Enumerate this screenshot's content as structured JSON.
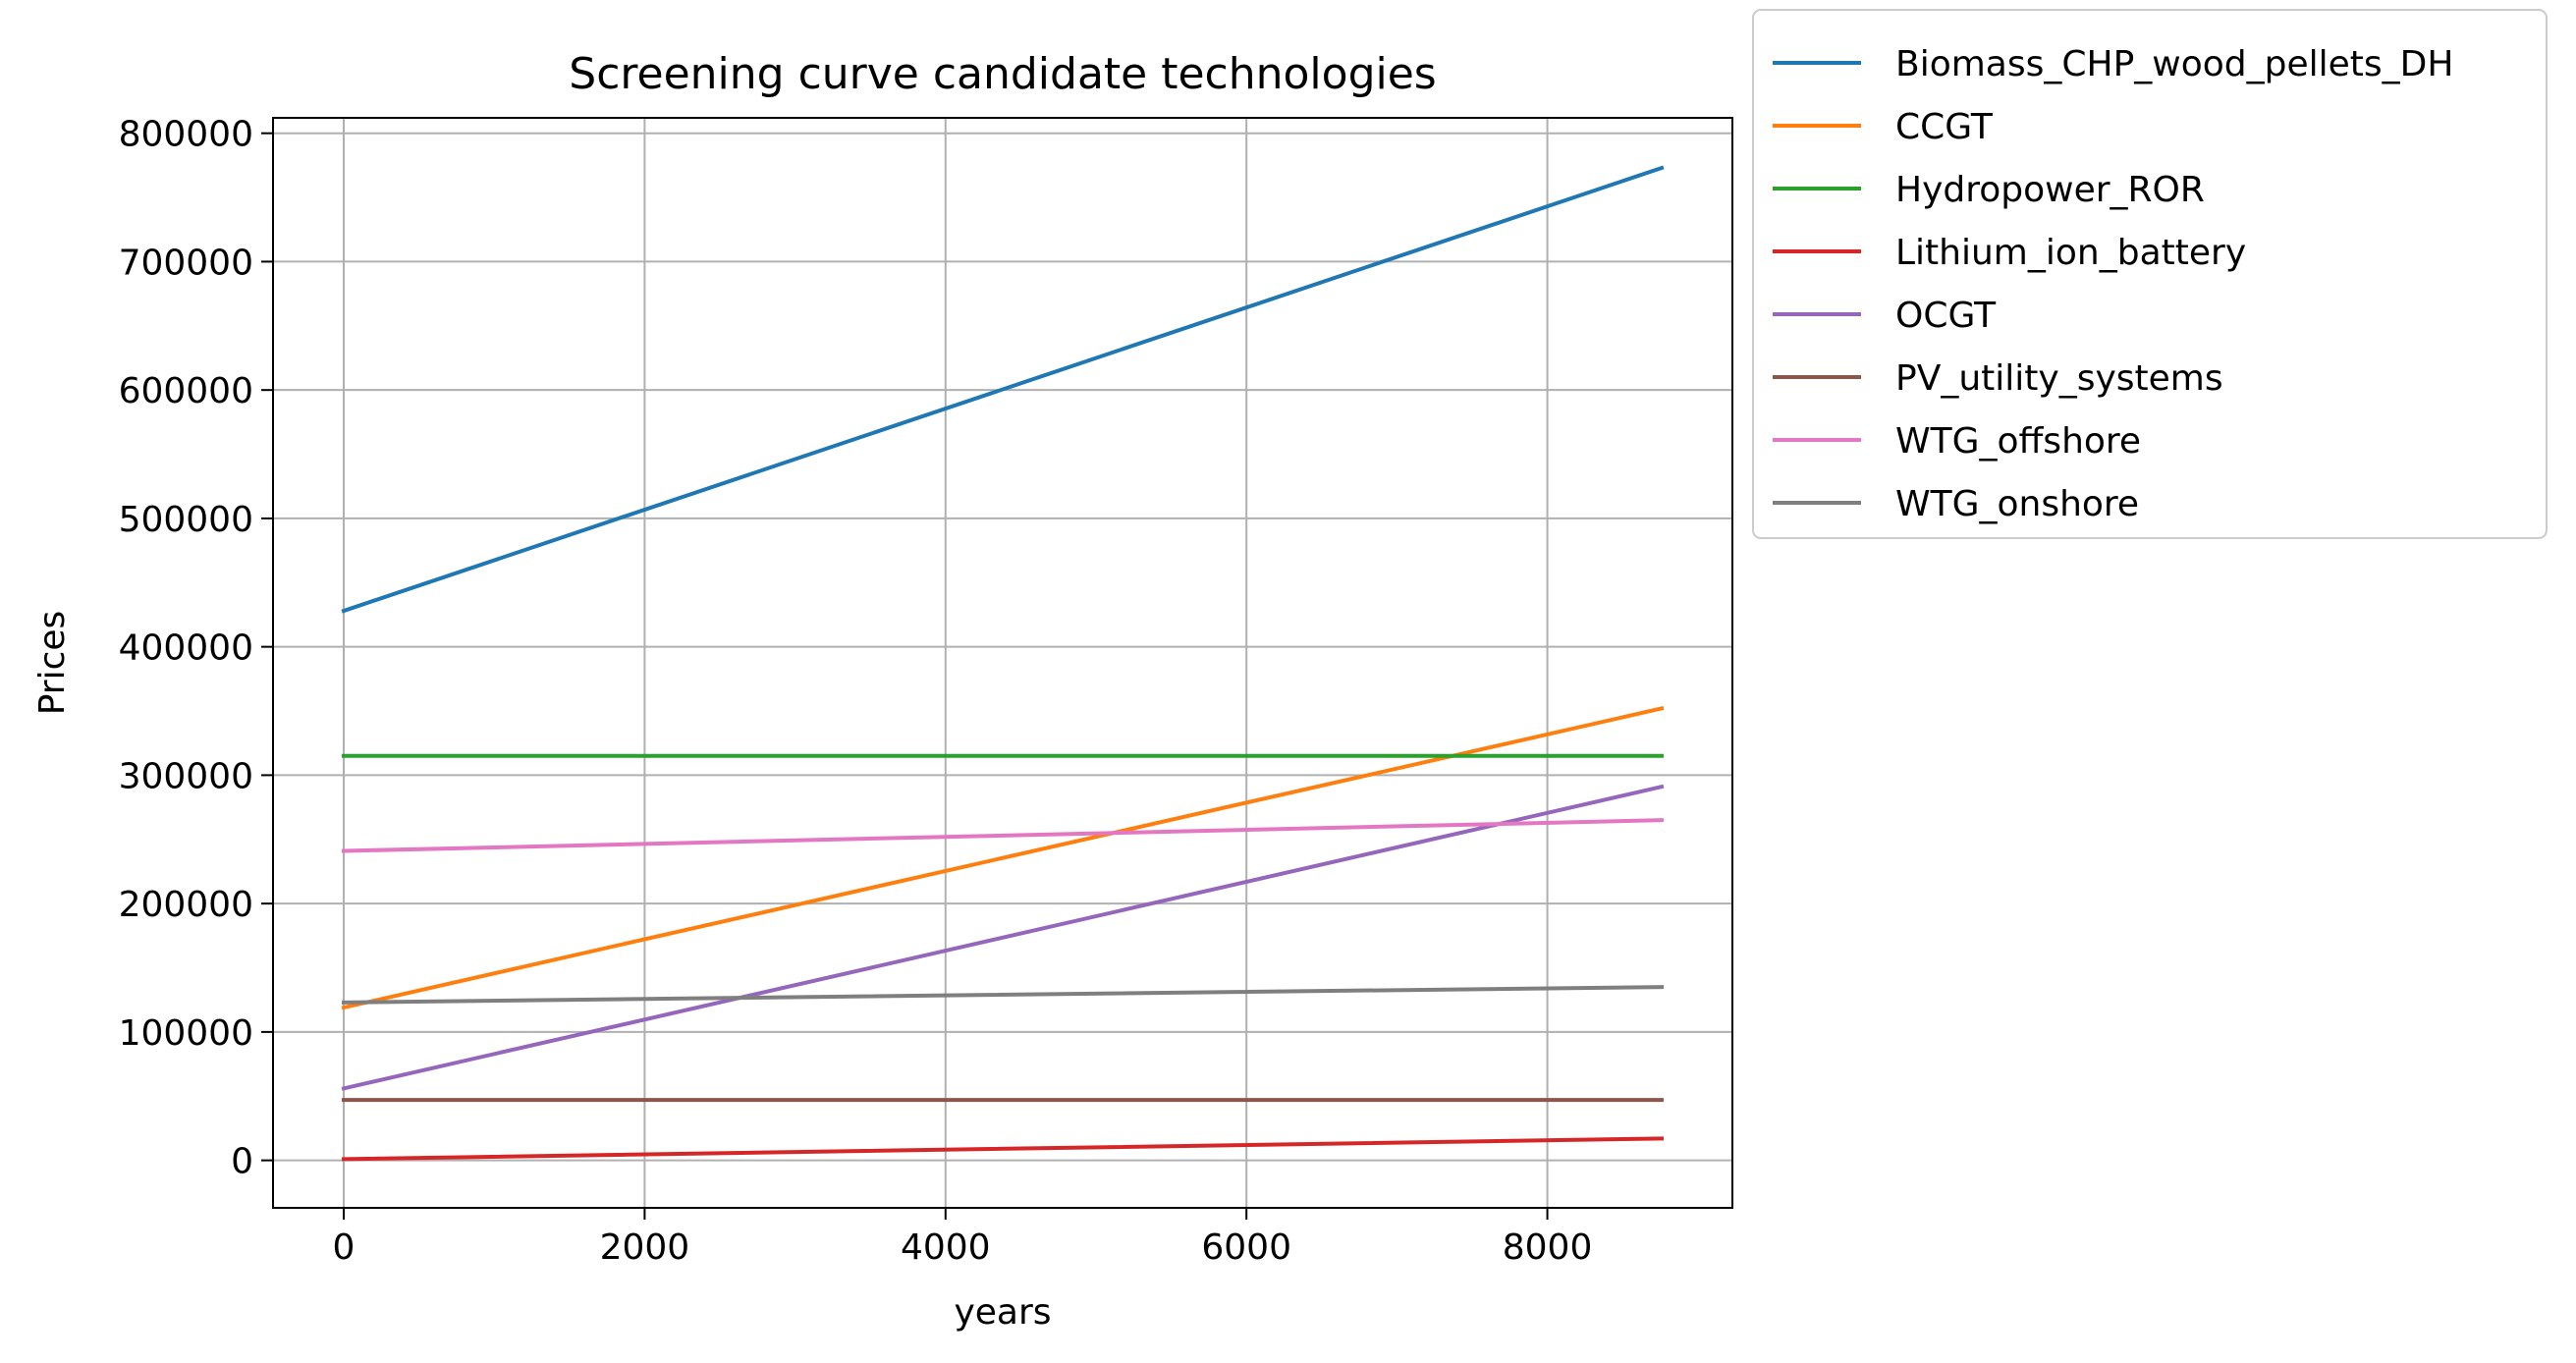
{
  "chart_data": {
    "type": "line",
    "title": "Screening curve candidate technologies",
    "xlabel": "years",
    "ylabel": "Prices",
    "xlim": [
      -470,
      9230
    ],
    "ylim": [
      -37000,
      812000
    ],
    "xticks": [
      0,
      2000,
      4000,
      6000,
      8000
    ],
    "yticks": [
      0,
      100000,
      200000,
      300000,
      400000,
      500000,
      600000,
      700000,
      800000
    ],
    "grid": true,
    "legend_position": "outside-top-right",
    "series": [
      {
        "name": "Biomass_CHP_wood_pellets_DH",
        "color": "#1f77b4",
        "x": [
          0,
          8760
        ],
        "y": [
          428000,
          773000
        ]
      },
      {
        "name": "CCGT",
        "color": "#ff7f0e",
        "x": [
          0,
          8760
        ],
        "y": [
          119000,
          352000
        ]
      },
      {
        "name": "Hydropower_ROR",
        "color": "#2ca02c",
        "x": [
          0,
          8760
        ],
        "y": [
          315000,
          315000
        ]
      },
      {
        "name": "Lithium_ion_battery",
        "color": "#d62728",
        "x": [
          0,
          8760
        ],
        "y": [
          1000,
          17000
        ]
      },
      {
        "name": "OCGT",
        "color": "#9467bd",
        "x": [
          0,
          8760
        ],
        "y": [
          56000,
          291000
        ]
      },
      {
        "name": "PV_utility_systems",
        "color": "#8c564b",
        "x": [
          0,
          8760
        ],
        "y": [
          47000,
          47000
        ]
      },
      {
        "name": "WTG_offshore",
        "color": "#e377c2",
        "x": [
          0,
          8760
        ],
        "y": [
          241000,
          265000
        ]
      },
      {
        "name": "WTG_onshore",
        "color": "#7f7f7f",
        "x": [
          0,
          8760
        ],
        "y": [
          123000,
          135000
        ]
      }
    ]
  }
}
